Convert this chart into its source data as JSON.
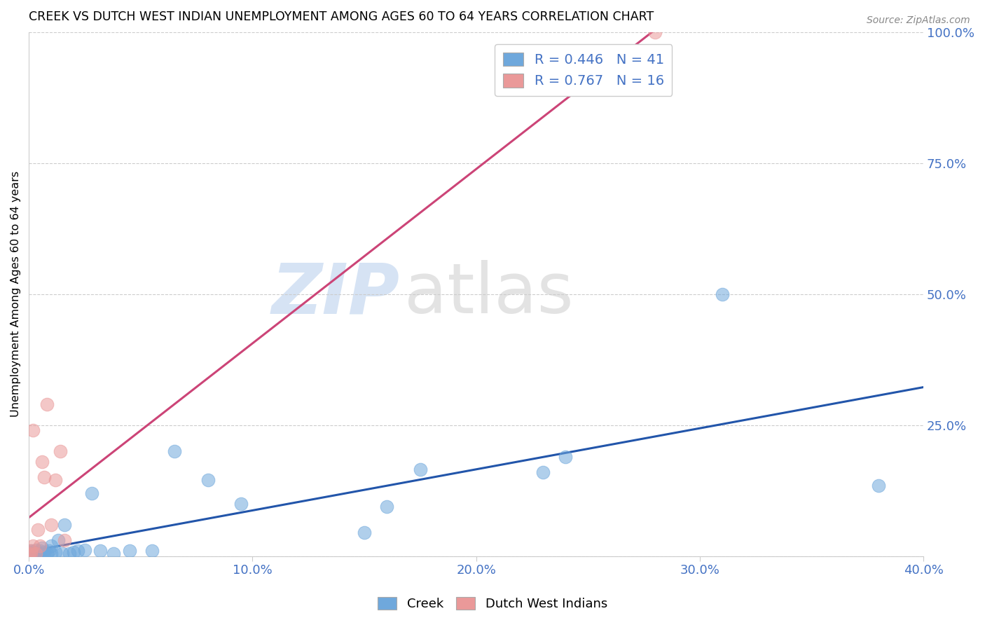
{
  "title": "CREEK VS DUTCH WEST INDIAN UNEMPLOYMENT AMONG AGES 60 TO 64 YEARS CORRELATION CHART",
  "source": "Source: ZipAtlas.com",
  "ylabel": "Unemployment Among Ages 60 to 64 years",
  "xlim": [
    0.0,
    0.4
  ],
  "ylim": [
    0.0,
    1.0
  ],
  "xtick_labels": [
    "0.0%",
    "10.0%",
    "20.0%",
    "30.0%",
    "40.0%"
  ],
  "xtick_vals": [
    0.0,
    0.1,
    0.2,
    0.3,
    0.4
  ],
  "ytick_right_labels": [
    "100.0%",
    "75.0%",
    "50.0%",
    "25.0%"
  ],
  "ytick_right_vals": [
    1.0,
    0.75,
    0.5,
    0.25
  ],
  "ytick_grid_vals": [
    1.0,
    0.75,
    0.5,
    0.25,
    0.0
  ],
  "creek_color": "#6fa8dc",
  "dwi_color": "#ea9999",
  "line_creek_color": "#2255aa",
  "line_dwi_color": "#cc4477",
  "legend_R_creek": "0.446",
  "legend_N_creek": "41",
  "legend_R_dwi": "0.767",
  "legend_N_dwi": "16",
  "watermark_zip": "ZIP",
  "watermark_atlas": "atlas",
  "creek_x": [
    0.0,
    0.0,
    0.0,
    0.001,
    0.001,
    0.002,
    0.003,
    0.003,
    0.004,
    0.005,
    0.005,
    0.006,
    0.006,
    0.007,
    0.008,
    0.009,
    0.01,
    0.01,
    0.012,
    0.013,
    0.015,
    0.016,
    0.018,
    0.02,
    0.022,
    0.025,
    0.028,
    0.032,
    0.038,
    0.045,
    0.055,
    0.065,
    0.08,
    0.095,
    0.15,
    0.16,
    0.175,
    0.23,
    0.24,
    0.31,
    0.38
  ],
  "creek_y": [
    0.002,
    0.005,
    0.008,
    0.003,
    0.01,
    0.005,
    0.008,
    0.012,
    0.005,
    0.003,
    0.01,
    0.005,
    0.015,
    0.008,
    0.005,
    0.01,
    0.005,
    0.02,
    0.008,
    0.03,
    0.005,
    0.06,
    0.005,
    0.008,
    0.01,
    0.012,
    0.12,
    0.01,
    0.005,
    0.01,
    0.01,
    0.2,
    0.145,
    0.1,
    0.045,
    0.095,
    0.165,
    0.16,
    0.19,
    0.5,
    0.135
  ],
  "dwi_x": [
    0.0,
    0.001,
    0.001,
    0.002,
    0.002,
    0.003,
    0.004,
    0.005,
    0.006,
    0.007,
    0.008,
    0.01,
    0.012,
    0.014,
    0.016,
    0.28
  ],
  "dwi_y": [
    0.003,
    0.005,
    0.01,
    0.02,
    0.24,
    0.005,
    0.05,
    0.02,
    0.18,
    0.15,
    0.29,
    0.06,
    0.145,
    0.2,
    0.03,
    1.0
  ]
}
